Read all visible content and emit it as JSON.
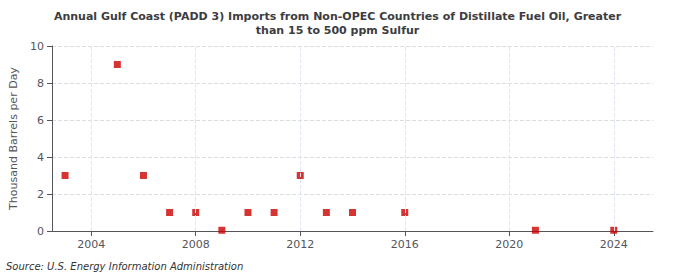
{
  "chart_data": {
    "type": "scatter",
    "title": "Annual Gulf Coast (PADD 3) Imports from Non-OPEC Countries of Distillate Fuel Oil, Greater\nthan 15 to 500 ppm Sulfur",
    "y_label": "Thousand Barrels per Day",
    "annotations": [
      "Source: U.S. Energy Information Administration"
    ],
    "x": [
      2003,
      2005,
      2006,
      2007,
      2008,
      2009,
      2010,
      2011,
      2012,
      2013,
      2014,
      2016,
      2021,
      2024
    ],
    "values": [
      3,
      9,
      3,
      1,
      1,
      0.04,
      1,
      1,
      3,
      1,
      1,
      1,
      0.04,
      0.04
    ],
    "color": "#cc0000",
    "marker": "square",
    "xlim": [
      2002.5,
      2025.5
    ],
    "xticks": [
      2004,
      2008,
      2012,
      2016,
      2020,
      2024
    ],
    "ylim": [
      0,
      10
    ],
    "yticks": [
      0,
      2,
      4,
      6,
      8,
      10
    ],
    "grid": true
  }
}
